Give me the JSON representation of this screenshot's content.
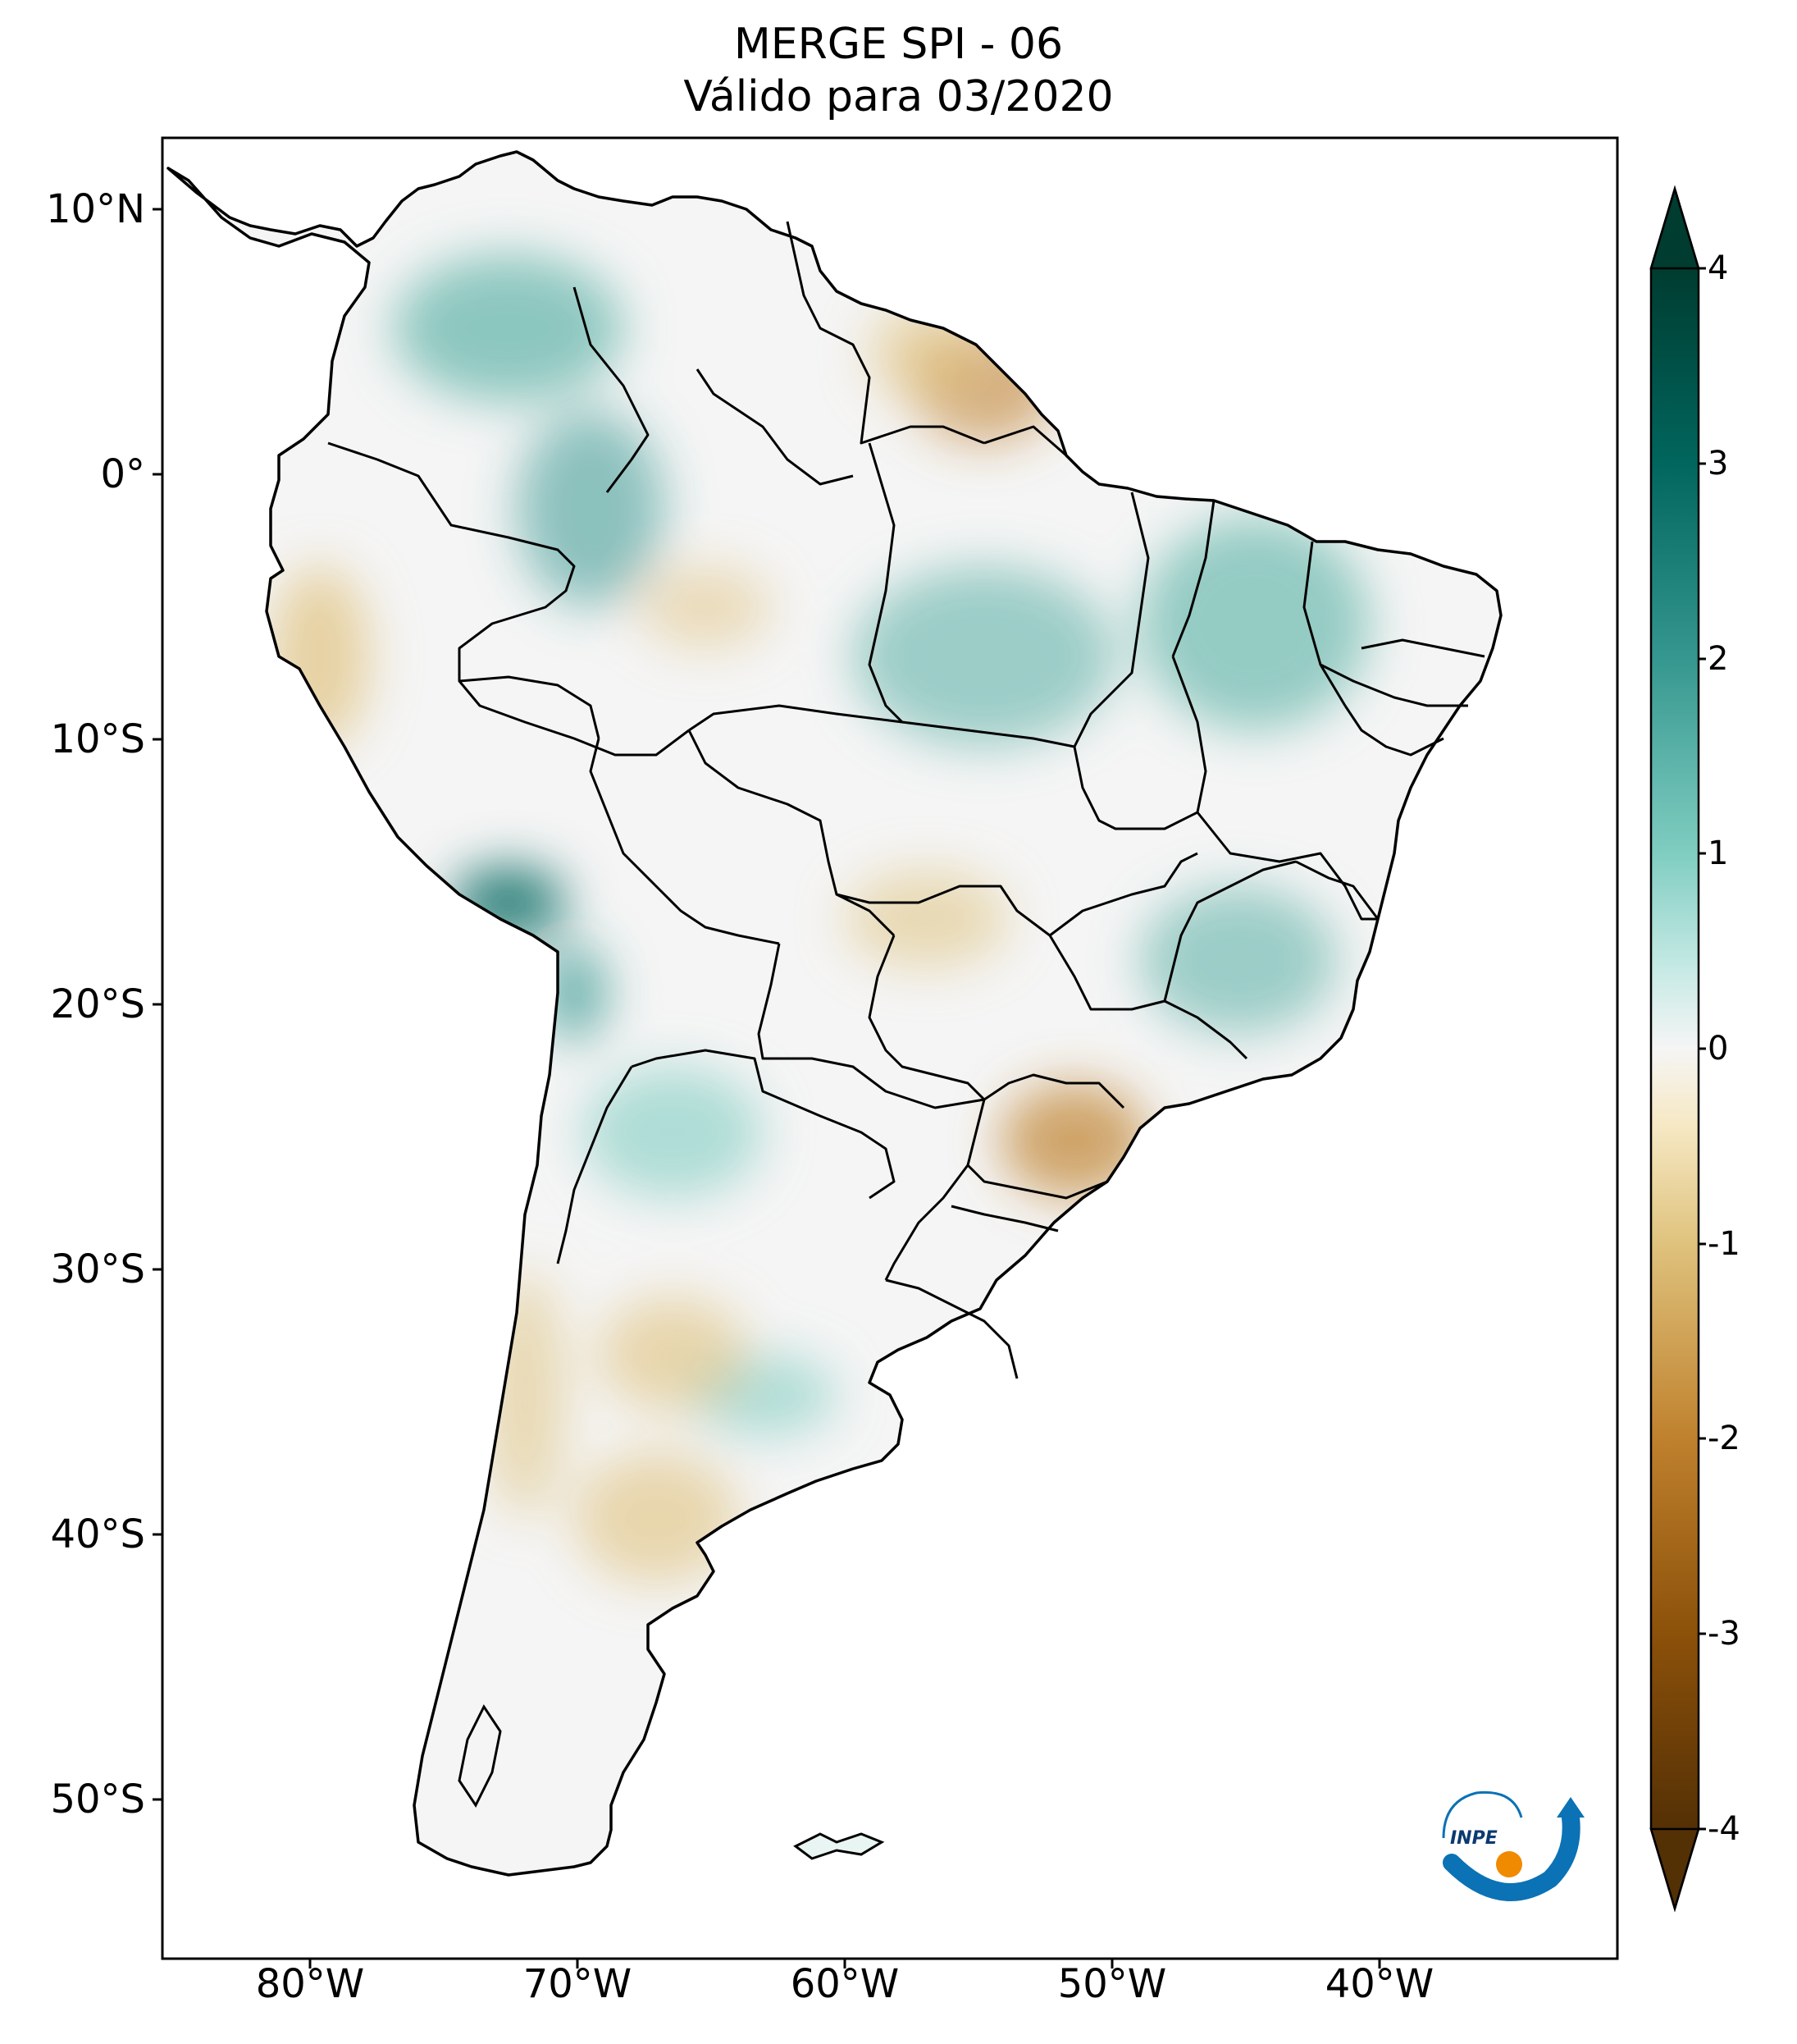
{
  "title": {
    "line1": "MERGE   SPI - 06",
    "line2": "Válido para 03/2020"
  },
  "map": {
    "region": "South America",
    "variable": "SPI - 06",
    "lat_ticks": [
      "10°N",
      "0°",
      "10°S",
      "20°S",
      "30°S",
      "40°S",
      "50°S"
    ],
    "lon_ticks": [
      "80°W",
      "70°W",
      "60°W",
      "50°W",
      "40°W"
    ],
    "lat_range": [
      -56,
      12.5
    ],
    "lon_range": [
      -85,
      -30.5
    ]
  },
  "colorbar": {
    "ticks": [
      "4",
      "3",
      "2",
      "1",
      "0",
      "-1",
      "-2",
      "-3",
      "-4"
    ],
    "colors": {
      "max": "#003c30",
      "wet_strong": "#01665e",
      "wet_mid": "#35978f",
      "wet_light": "#80cdc1",
      "wet_pale": "#c7eae5",
      "neutral": "#f5f5f5",
      "dry_pale": "#f6e8c3",
      "dry_light": "#dfc27d",
      "dry_mid": "#bf812d",
      "dry_strong": "#8c510a",
      "min": "#543005"
    }
  },
  "logo": {
    "text": "INPE"
  }
}
